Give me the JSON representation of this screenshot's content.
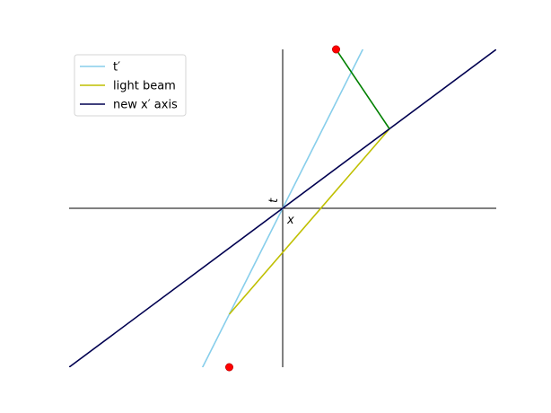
{
  "chart_data": {
    "type": "line",
    "title": "",
    "xlabel": "x",
    "ylabel": "t",
    "xlim": [
      -2,
      2
    ],
    "ylim": [
      -1.5,
      1.5
    ],
    "grid": false,
    "legend_position": "top-left",
    "axes_style": "centered-crosshair",
    "series": [
      {
        "name": "t′",
        "color": "#87CEEB",
        "x": [
          -1.0,
          1.0
        ],
        "y": [
          -2.0,
          2.0
        ]
      },
      {
        "name": "light beam",
        "color": "#BFBF00",
        "x": [
          -0.5,
          1.0
        ],
        "y": [
          -1.0,
          0.75
        ]
      },
      {
        "name": "new x′ axis",
        "color": "#000050",
        "x": [
          -2.0,
          2.0
        ],
        "y": [
          -1.5,
          1.5
        ]
      },
      {
        "name": "",
        "color": "#008000",
        "x": [
          0.5,
          1.0
        ],
        "y": [
          1.5,
          0.75
        ]
      }
    ],
    "points": {
      "color": "#FF0000",
      "x": [
        0.5,
        -0.5
      ],
      "y": [
        1.5,
        -1.5
      ]
    }
  }
}
